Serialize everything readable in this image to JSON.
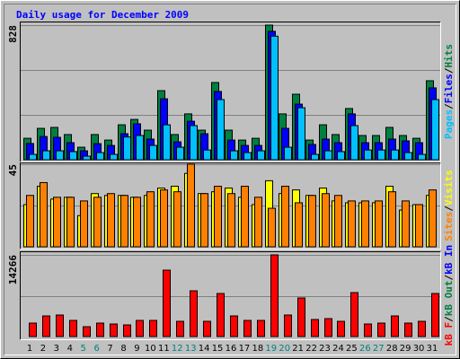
{
  "title": "Daily usage for December 2009",
  "legend_separator": "/",
  "chart_data": [
    {
      "type": "bar",
      "ylim": [
        0,
        828
      ],
      "yticks": [
        828
      ],
      "grid_divisions": 3,
      "series": [
        {
          "name": "Hits",
          "color": "#008040",
          "values": [
            132,
            193,
            199,
            155,
            77,
            155,
            121,
            215,
            248,
            182,
            425,
            155,
            282,
            182,
            475,
            182,
            121,
            132,
            828,
            282,
            403,
            121,
            215,
            155,
            315,
            149,
            149,
            199,
            149,
            132,
            486
          ]
        },
        {
          "name": "Files",
          "color": "#0000ff",
          "values": [
            100,
            143,
            138,
            105,
            55,
            99,
            88,
            160,
            221,
            127,
            375,
            110,
            237,
            160,
            420,
            121,
            88,
            88,
            790,
            193,
            342,
            94,
            127,
            105,
            282,
            105,
            105,
            127,
            116,
            105,
            442
          ]
        },
        {
          "name": "Pages",
          "color": "#00c0ff",
          "values": [
            33,
            55,
            55,
            50,
            22,
            44,
            33,
            140,
            149,
            88,
            215,
            77,
            210,
            60,
            370,
            55,
            44,
            55,
            760,
            77,
            320,
            33,
            55,
            50,
            210,
            60,
            60,
            60,
            44,
            33,
            370
          ]
        }
      ]
    },
    {
      "type": "bar",
      "ylim": [
        0,
        45
      ],
      "yticks": [
        45
      ],
      "grid_divisions": 2,
      "series": [
        {
          "name": "Visits",
          "color": "#ffff00",
          "values": [
            23,
            33,
            26,
            27,
            17,
            29,
            28,
            28,
            27,
            28,
            32,
            33,
            40,
            29,
            30,
            32,
            27,
            23,
            36,
            29,
            31,
            28,
            32,
            25,
            24,
            24,
            24,
            33,
            20,
            23,
            28
          ]
        },
        {
          "name": "Sites",
          "color": "#ff8000",
          "values": [
            28,
            35,
            27,
            27,
            25,
            27,
            29,
            28,
            27,
            30,
            31,
            30,
            45,
            29,
            33,
            29,
            33,
            27,
            21,
            33,
            24,
            28,
            29,
            28,
            25,
            25,
            25,
            30,
            25,
            23,
            31
          ]
        }
      ]
    },
    {
      "type": "bar",
      "ylim": [
        0,
        14266
      ],
      "yticks": [
        14266
      ],
      "grid_divisions": 2,
      "categories": [
        "1",
        "2",
        "3",
        "4",
        "5",
        "6",
        "7",
        "8",
        "9",
        "10",
        "11",
        "12",
        "13",
        "14",
        "15",
        "16",
        "17",
        "18",
        "19",
        "20",
        "21",
        "22",
        "23",
        "24",
        "25",
        "26",
        "27",
        "28",
        "29",
        "30",
        "31"
      ],
      "category_colors": [
        "#000000",
        "#000000",
        "#000000",
        "#000000",
        "#008080",
        "#008080",
        "#000000",
        "#000000",
        "#000000",
        "#000000",
        "#000000",
        "#008080",
        "#008080",
        "#000000",
        "#000000",
        "#000000",
        "#000000",
        "#000000",
        "#008080",
        "#008080",
        "#000000",
        "#000000",
        "#000000",
        "#000000",
        "#000000",
        "#008080",
        "#008080",
        "#000000",
        "#000000",
        "#000000",
        "#000000"
      ],
      "series": [
        {
          "name": "kB In",
          "color": "#0000ff",
          "values": [
            0,
            0,
            0,
            0,
            0,
            0,
            0,
            0,
            0,
            0,
            0,
            0,
            0,
            0,
            0,
            0,
            0,
            0,
            0,
            0,
            0,
            0,
            0,
            0,
            0,
            0,
            0,
            0,
            0,
            0,
            0
          ]
        },
        {
          "name": "kB Out",
          "color": "#008040",
          "values": [
            0,
            0,
            0,
            0,
            0,
            0,
            0,
            0,
            0,
            0,
            0,
            0,
            0,
            0,
            0,
            0,
            0,
            0,
            0,
            0,
            0,
            0,
            0,
            0,
            0,
            0,
            0,
            0,
            0,
            0,
            0
          ]
        },
        {
          "name": "kB F",
          "color": "#ff0000",
          "values": [
            2352,
            3606,
            3762,
            2822,
            1725,
            2352,
            2195,
            2038,
            2822,
            2822,
            11600,
            2665,
            7995,
            2665,
            7525,
            3606,
            2822,
            2822,
            14266,
            3762,
            6741,
            2979,
            3135,
            2665,
            7681,
            2195,
            2352,
            3606,
            2352,
            2665,
            7525
          ]
        }
      ]
    }
  ]
}
